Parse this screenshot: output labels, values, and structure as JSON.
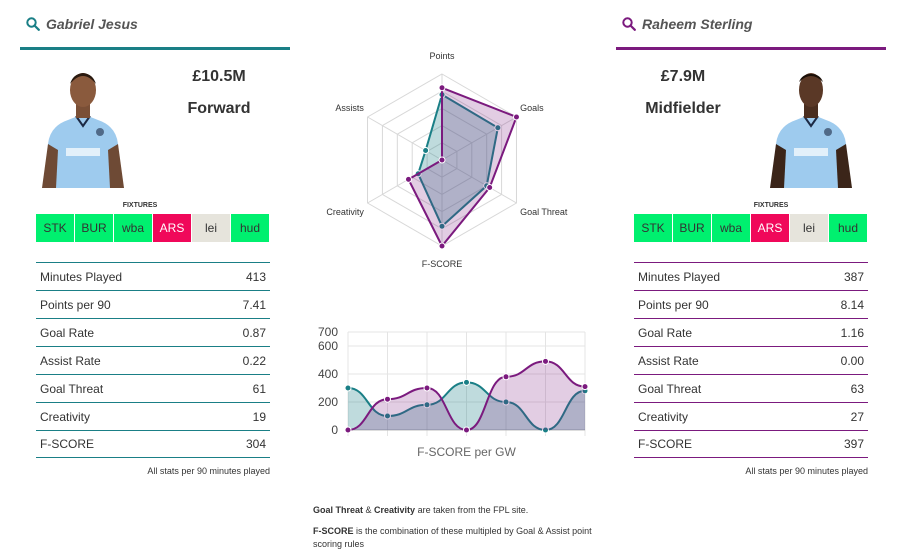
{
  "colors": {
    "player1": "#1a7f86",
    "player2": "#7b1a7e",
    "fixture_easy": "#00f06f",
    "fixture_hard": "#f0085a",
    "fixture_neutral": "#e6e4dc"
  },
  "player1": {
    "name": "Gabriel Jesus",
    "price": "£10.5M",
    "position": "Forward",
    "fixtures_title": "FIXTURES",
    "fixtures": [
      {
        "label": "STK",
        "difficulty": "easy"
      },
      {
        "label": "BUR",
        "difficulty": "easy"
      },
      {
        "label": "wba",
        "difficulty": "easy"
      },
      {
        "label": "ARS",
        "difficulty": "hard"
      },
      {
        "label": "lei",
        "difficulty": "neutral"
      },
      {
        "label": "hud",
        "difficulty": "easy"
      }
    ],
    "stats": [
      {
        "label": "Minutes Played",
        "value": "413"
      },
      {
        "label": "Points per 90",
        "value": "7.41"
      },
      {
        "label": "Goal Rate",
        "value": "0.87"
      },
      {
        "label": "Assist Rate",
        "value": "0.22"
      },
      {
        "label": "Goal Threat",
        "value": "61"
      },
      {
        "label": "Creativity",
        "value": "19"
      },
      {
        "label": "F-SCORE",
        "value": "304"
      }
    ],
    "stats_note": "All stats per 90 minutes played"
  },
  "player2": {
    "name": "Raheem Sterling",
    "price": "£7.9M",
    "position": "Midfielder",
    "fixtures_title": "FIXTURES",
    "fixtures": [
      {
        "label": "STK",
        "difficulty": "easy"
      },
      {
        "label": "BUR",
        "difficulty": "easy"
      },
      {
        "label": "wba",
        "difficulty": "easy"
      },
      {
        "label": "ARS",
        "difficulty": "hard"
      },
      {
        "label": "lei",
        "difficulty": "neutral"
      },
      {
        "label": "hud",
        "difficulty": "easy"
      }
    ],
    "stats": [
      {
        "label": "Minutes Played",
        "value": "387"
      },
      {
        "label": "Points per 90",
        "value": "8.14"
      },
      {
        "label": "Goal Rate",
        "value": "1.16"
      },
      {
        "label": "Assist Rate",
        "value": "0.00"
      },
      {
        "label": "Goal Threat",
        "value": "63"
      },
      {
        "label": "Creativity",
        "value": "27"
      },
      {
        "label": "F-SCORE",
        "value": "397"
      }
    ],
    "stats_note": "All stats per 90 minutes played"
  },
  "chart_data": [
    {
      "type": "radar",
      "axes": [
        "Points",
        "Goals",
        "Goal Threat",
        "F-SCORE",
        "Creativity",
        "Assists"
      ],
      "max": 1,
      "series": [
        {
          "values": [
            0.76,
            0.75,
            0.6,
            0.77,
            0.32,
            0.22
          ]
        },
        {
          "values": [
            0.84,
            1.0,
            0.64,
            1.0,
            0.45,
            0.0
          ]
        }
      ]
    },
    {
      "type": "area",
      "xlabel": "F-SCORE per GW",
      "y_ticks": [
        0,
        200,
        400,
        600,
        700
      ],
      "ylim": [
        0,
        700
      ],
      "x": [
        1,
        2,
        3,
        4,
        5,
        6,
        7
      ],
      "series": [
        {
          "values": [
            300,
            100,
            180,
            340,
            200,
            0,
            280
          ]
        },
        {
          "values": [
            0,
            220,
            300,
            0,
            380,
            490,
            310
          ]
        }
      ]
    }
  ],
  "notes": {
    "line1_bold_a": "Goal Threat",
    "line1_mid": " & ",
    "line1_bold_b": "Creativity",
    "line1_rest": " are taken from the FPL site.",
    "line2_bold": "F-SCORE",
    "line2_rest": " is the combination of these multipled by Goal & Assist point scoring rules"
  }
}
